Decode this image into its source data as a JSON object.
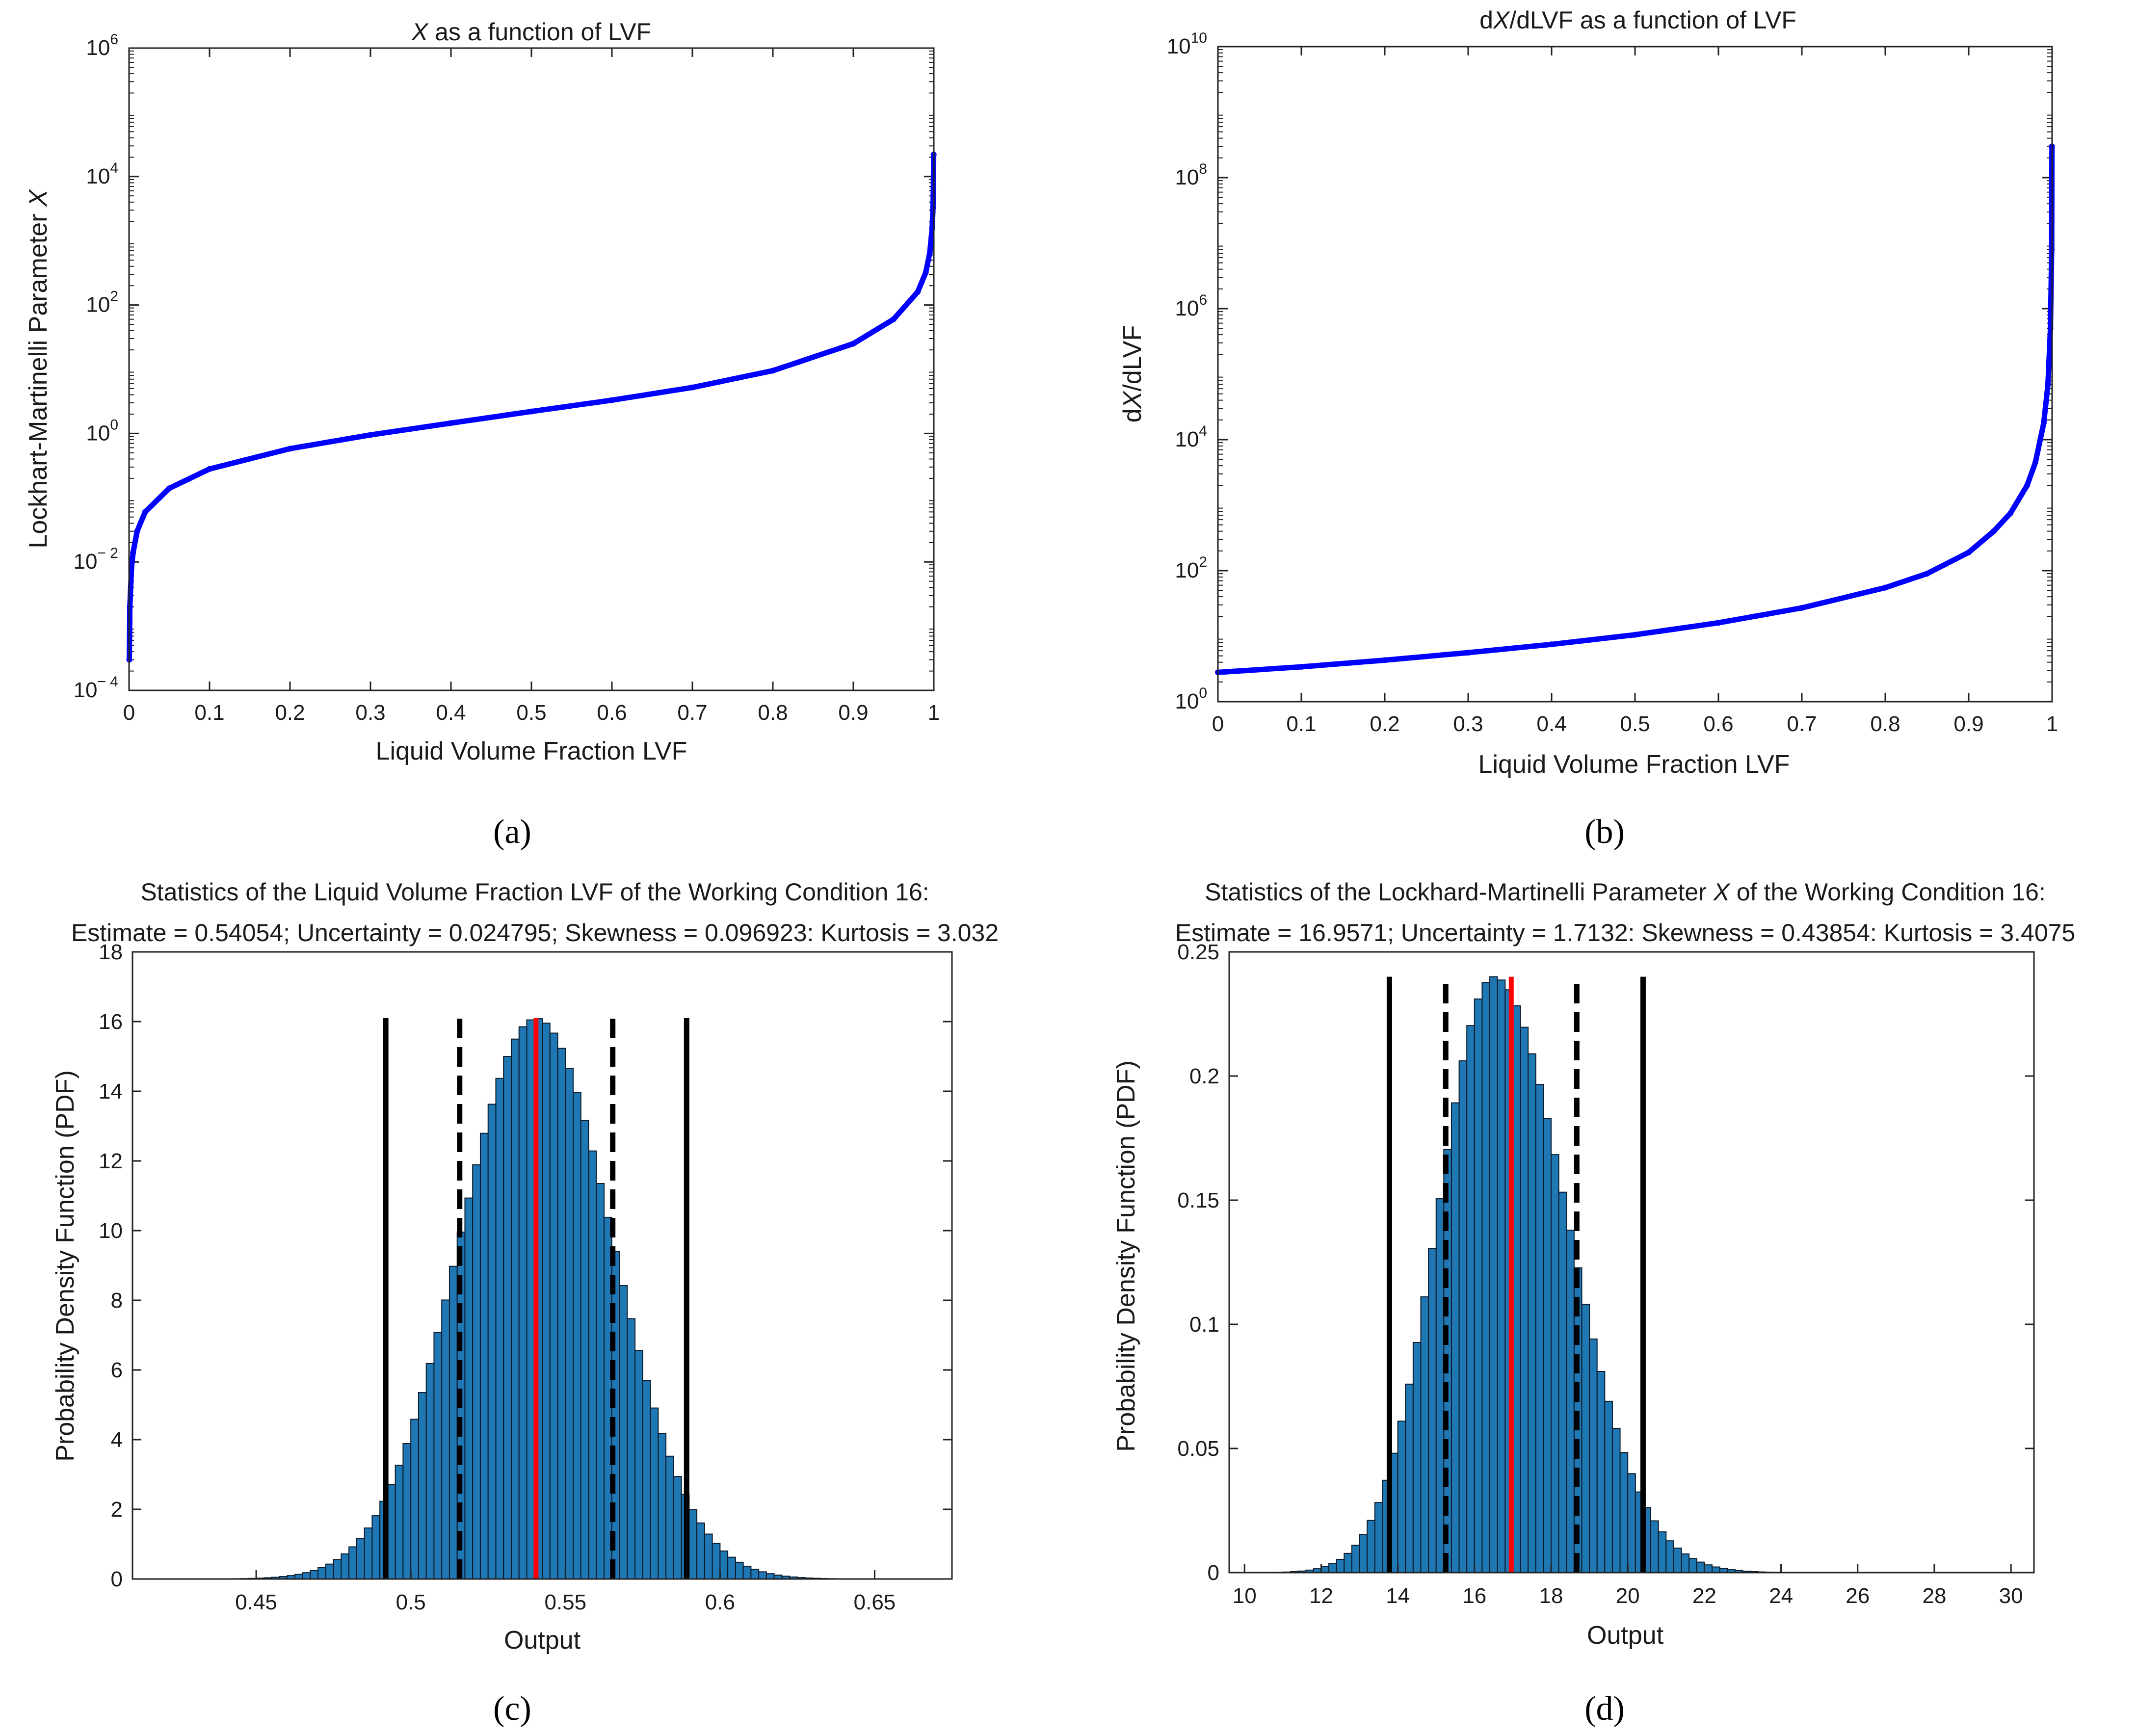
{
  "panel_labels": [
    "(a)",
    "(b)",
    "(c)",
    "(d)"
  ],
  "colors": {
    "curve": "#0000ff",
    "bar": "#1f77b4",
    "bar_edge": "#0a1a2a",
    "estimate": "#ff0000",
    "interval": "#000000"
  },
  "chart_data": [
    {
      "type": "line",
      "title": {
        "pre": "",
        "ital": "X",
        "post": " as a function of LVF"
      },
      "xlabel": "Liquid Volume Fraction LVF",
      "ylabel": {
        "pre": "Lockhart-Martinelli Parameter ",
        "ital": "X"
      },
      "xlim": [
        0,
        1
      ],
      "ylim": [
        0.0001,
        1000000
      ],
      "yscale": "log",
      "xticks": [
        0,
        0.1,
        0.2,
        0.3,
        0.4,
        0.5,
        0.6,
        0.7,
        0.8,
        0.9,
        1
      ],
      "yticks_exp": [
        -4,
        -2,
        0,
        2,
        4,
        6
      ],
      "grid": false,
      "series": [
        {
          "x": [
            0.0003,
            0.001,
            0.003,
            0.005,
            0.01,
            0.02,
            0.05,
            0.1,
            0.2,
            0.3,
            0.4,
            0.5,
            0.6,
            0.7,
            0.8,
            0.9,
            0.95,
            0.98,
            0.99,
            0.995,
            0.998,
            0.999,
            0.9995,
            0.9998
          ],
          "y": [
            0.0003,
            0.002,
            0.008,
            0.014,
            0.03,
            0.06,
            0.14,
            0.28,
            0.58,
            0.95,
            1.45,
            2.2,
            3.3,
            5.2,
            9.5,
            25,
            60,
            160,
            320,
            650,
            1600,
            3300,
            6600,
            22000
          ]
        }
      ]
    },
    {
      "type": "line",
      "title": {
        "pre": "d",
        "ital": "X",
        "post": "/dLVF as a function of LVF"
      },
      "xlabel": "Liquid Volume Fraction LVF",
      "ylabel": {
        "pre": "d",
        "ital": "X",
        "post": "/dLVF"
      },
      "xlim": [
        0,
        1
      ],
      "ylim": [
        1,
        10000000000
      ],
      "yscale": "log",
      "xticks": [
        0,
        0.1,
        0.2,
        0.3,
        0.4,
        0.5,
        0.6,
        0.7,
        0.8,
        0.9,
        1
      ],
      "yticks_exp": [
        0,
        2,
        4,
        6,
        8,
        10
      ],
      "grid": false,
      "series": [
        {
          "x": [
            0,
            0.1,
            0.2,
            0.3,
            0.4,
            0.5,
            0.6,
            0.7,
            0.8,
            0.85,
            0.9,
            0.93,
            0.95,
            0.97,
            0.98,
            0.99,
            0.995,
            0.998,
            0.9995,
            0.9998
          ],
          "y": [
            2.8,
            3.4,
            4.3,
            5.6,
            7.5,
            10.5,
            16,
            27,
            55,
            90,
            190,
            400,
            750,
            2000,
            4500,
            18000,
            70000,
            500000,
            8000000,
            300000000
          ]
        }
      ]
    },
    {
      "type": "bar",
      "title": "Statistics of the Liquid Volume Fraction LVF of the Working Condition 16:",
      "subtitle": "Estimate = 0.54054; Uncertainty = 0.024795; Skewness = 0.096923: Kurtosis = 3.032",
      "xlabel": "Output",
      "ylabel": "Probability Density Function (PDF)",
      "xlim": [
        0.41,
        0.675
      ],
      "ylim": [
        0,
        18
      ],
      "xticks": [
        0.45,
        0.5,
        0.55,
        0.6,
        0.65
      ],
      "yticks": [
        0,
        2,
        4,
        6,
        8,
        10,
        12,
        14,
        16,
        18
      ],
      "bin_width": 0.0025,
      "estimate": 0.5405,
      "interval_inner": [
        0.5158,
        0.5653
      ],
      "interval_outer": [
        0.4919,
        0.5892
      ],
      "line_height": 16.1,
      "hist": {
        "mean": 0.54054,
        "sd": 0.024795,
        "range": [
          0.42,
          0.67
        ]
      }
    },
    {
      "type": "bar",
      "title": {
        "pre": "Statistics of the Lockhard-Martinelli Parameter ",
        "ital": "X",
        "post": " of the Working Condition 16:"
      },
      "subtitle": "Estimate = 16.9571; Uncertainty = 1.7132: Skewness = 0.43854: Kurtosis = 3.4075",
      "xlabel": "Output",
      "ylabel": "Probability Density Function (PDF)",
      "xlim": [
        9.6,
        30.6
      ],
      "ylim": [
        0,
        0.25
      ],
      "xticks": [
        10,
        12,
        14,
        16,
        18,
        20,
        22,
        24,
        26,
        28,
        30
      ],
      "yticks": [
        0,
        0.05,
        0.1,
        0.15,
        0.2,
        0.25
      ],
      "bin_width": 0.2,
      "estimate": 16.96,
      "interval_inner": [
        15.25,
        18.67
      ],
      "interval_outer": [
        13.78,
        20.4
      ],
      "line_height": 0.24,
      "hist": {
        "mode": 16.5,
        "sd_left": 1.45,
        "sd_right": 1.9,
        "peak": 0.24,
        "range": [
          10.4,
          26.8
        ]
      }
    }
  ]
}
